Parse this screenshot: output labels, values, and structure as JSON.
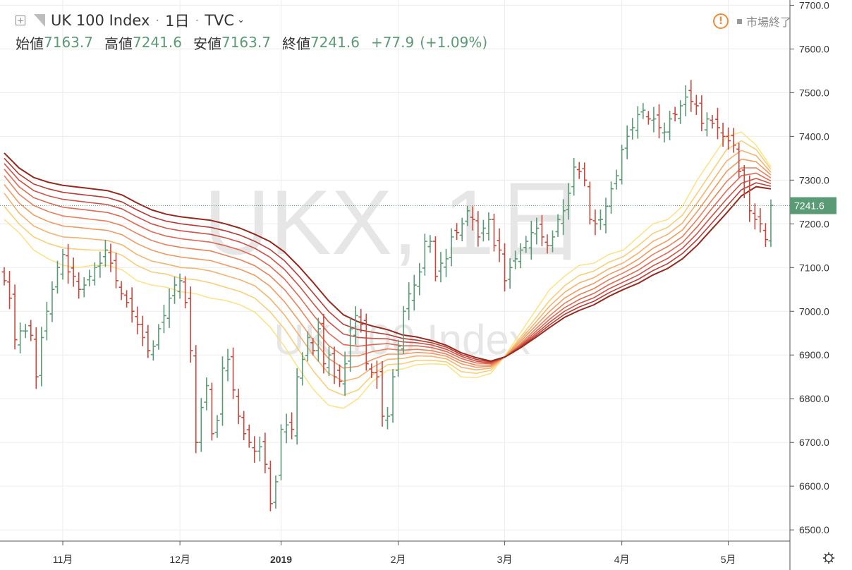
{
  "header": {
    "symbol_name": "UK 100 Index",
    "interval": "1日",
    "exchange": "TVC",
    "status_text": "市場終了",
    "ohlc": [
      {
        "label": "始値",
        "value": "7163.7"
      },
      {
        "label": "高値",
        "value": "7241.6"
      },
      {
        "label": "安値",
        "value": "7163.7"
      },
      {
        "label": "終値",
        "value": "7241.6"
      }
    ],
    "change": "+77.9",
    "change_pct": "(+1.09%)"
  },
  "watermark": {
    "line1": "UKX, 1日",
    "line2": "UK 100 Index"
  },
  "price_tag": "7241.6",
  "colors": {
    "up": "#5a9a75",
    "down": "#c9473c",
    "grid": "#ececec",
    "axis_text": "#333333",
    "ribbon": [
      "#fbe38a",
      "#f7cf7a",
      "#f4b36e",
      "#f09b62",
      "#e8815a",
      "#de6a51",
      "#cf5246",
      "#b73d35",
      "#96291d"
    ]
  },
  "chart_data": {
    "type": "candlestick",
    "title": "UK 100 Index",
    "y_axis": {
      "ticks": [
        "6500.0",
        "6600.0",
        "6700.0",
        "6800.0",
        "6900.0",
        "7000.0",
        "7100.0",
        "7200.0",
        "7300.0",
        "7400.0",
        "7500.0",
        "7600.0",
        "7700.0"
      ],
      "range": [
        6476,
        7712
      ]
    },
    "x_axis": {
      "labels": [
        {
          "text": "11月",
          "index": 11
        },
        {
          "text": "12月",
          "index": 33
        },
        {
          "text": "2019",
          "index": 52
        },
        {
          "text": "2月",
          "index": 74
        },
        {
          "text": "3月",
          "index": 94
        },
        {
          "text": "4月",
          "index": 116
        },
        {
          "text": "5月",
          "index": 136
        }
      ]
    },
    "last_price": 7241.6,
    "closes": [
      7070,
      7030,
      6935,
      6955,
      6955,
      6945,
      6850,
      6940,
      7000,
      7050,
      7100,
      7130,
      7090,
      7080,
      7050,
      7060,
      7080,
      7100,
      7110,
      7140,
      7110,
      7070,
      7040,
      7020,
      7000,
      6970,
      6940,
      6910,
      6920,
      6960,
      6990,
      7030,
      7060,
      7070,
      7020,
      6910,
      6700,
      6780,
      6830,
      6720,
      6750,
      6870,
      6890,
      6820,
      6760,
      6720,
      6700,
      6680,
      6690,
      6650,
      6560,
      6610,
      6730,
      6740,
      6730,
      6850,
      6890,
      6940,
      6910,
      6960,
      6880,
      6900,
      6850,
      6840,
      6880,
      6960,
      6990,
      6970,
      6880,
      6860,
      6850,
      6760,
      6760,
      6850,
      6920,
      7000,
      7040,
      7060,
      7090,
      7160,
      7160,
      7080,
      7110,
      7120,
      7170,
      7180,
      7200,
      7230,
      7210,
      7170,
      7190,
      7210,
      7150,
      7140,
      7070,
      7100,
      7120,
      7140,
      7160,
      7180,
      7190,
      7170,
      7150,
      7170,
      7210,
      7230,
      7270,
      7330,
      7320,
      7300,
      7210,
      7200,
      7210,
      7240,
      7280,
      7310,
      7370,
      7400,
      7420,
      7450,
      7460,
      7440,
      7440,
      7420,
      7410,
      7440,
      7450,
      7470,
      7490,
      7480,
      7470,
      7430,
      7440,
      7430,
      7420,
      7400,
      7390,
      7380,
      7320,
      7270,
      7230,
      7210,
      7200,
      7164,
      7242
    ],
    "series": [
      {
        "name": "EMA1",
        "values": [
          7210,
          7180,
          7140,
          7120,
          7105,
          7100,
          7105,
          7105,
          7095,
          7070,
          7060,
          7055,
          7045,
          7040,
          7030,
          7025,
          7015,
          6998,
          6965,
          6920,
          6868,
          6820,
          6785,
          6778,
          6800,
          6840,
          6865,
          6868,
          6878,
          6880,
          6878,
          6850,
          6848,
          6858,
          6900,
          6950,
          7000,
          7050,
          7080,
          7105,
          7110,
          7130,
          7140,
          7170,
          7200,
          7210,
          7240,
          7300,
          7350,
          7400,
          7410,
          7380,
          7330
        ]
      },
      {
        "name": "EMA2",
        "values": [
          7240,
          7200,
          7170,
          7155,
          7145,
          7142,
          7140,
          7140,
          7128,
          7105,
          7090,
          7085,
          7075,
          7072,
          7065,
          7055,
          7045,
          7030,
          7000,
          6960,
          6910,
          6862,
          6822,
          6808,
          6820,
          6855,
          6878,
          6880,
          6888,
          6888,
          6884,
          6862,
          6858,
          6865,
          6898,
          6940,
          6982,
          7025,
          7058,
          7082,
          7092,
          7112,
          7125,
          7150,
          7178,
          7192,
          7220,
          7270,
          7320,
          7370,
          7390,
          7370,
          7325
        ]
      },
      {
        "name": "EMA3",
        "values": [
          7270,
          7225,
          7195,
          7180,
          7170,
          7168,
          7165,
          7162,
          7152,
          7130,
          7115,
          7108,
          7100,
          7098,
          7092,
          7082,
          7072,
          7058,
          7030,
          6992,
          6945,
          6898,
          6858,
          6840,
          6848,
          6872,
          6890,
          6892,
          6898,
          6897,
          6891,
          6872,
          6866,
          6870,
          6898,
          6935,
          6973,
          7012,
          7043,
          7065,
          7077,
          7097,
          7111,
          7133,
          7160,
          7176,
          7202,
          7248,
          7296,
          7344,
          7368,
          7356,
          7318
        ]
      },
      {
        "name": "EMA4",
        "values": [
          7290,
          7248,
          7220,
          7205,
          7195,
          7192,
          7188,
          7185,
          7175,
          7155,
          7140,
          7130,
          7124,
          7120,
          7116,
          7106,
          7096,
          7082,
          7058,
          7022,
          6978,
          6932,
          6892,
          6870,
          6874,
          6890,
          6902,
          6902,
          6906,
          6904,
          6897,
          6880,
          6872,
          6874,
          6897,
          6930,
          6965,
          7000,
          7030,
          7050,
          7064,
          7084,
          7099,
          7119,
          7144,
          7162,
          7186,
          7228,
          7274,
          7320,
          7348,
          7342,
          7312
        ]
      },
      {
        "name": "EMA5",
        "values": [
          7310,
          7268,
          7242,
          7228,
          7218,
          7214,
          7210,
          7206,
          7196,
          7178,
          7162,
          7152,
          7146,
          7142,
          7138,
          7128,
          7118,
          7104,
          7082,
          7050,
          7008,
          6962,
          6922,
          6898,
          6898,
          6908,
          6914,
          6911,
          6913,
          6910,
          6902,
          6886,
          6877,
          6877,
          6896,
          6925,
          6958,
          6990,
          7018,
          7038,
          7052,
          7072,
          7088,
          7106,
          7130,
          7148,
          7171,
          7210,
          7254,
          7297,
          7328,
          7328,
          7305
        ]
      },
      {
        "name": "EMA6",
        "values": [
          7325,
          7285,
          7260,
          7248,
          7238,
          7234,
          7230,
          7226,
          7216,
          7198,
          7182,
          7172,
          7166,
          7162,
          7158,
          7150,
          7140,
          7126,
          7104,
          7074,
          7034,
          6990,
          6950,
          6924,
          6920,
          6924,
          6926,
          6921,
          6921,
          6917,
          6908,
          6892,
          6882,
          6880,
          6896,
          6922,
          6952,
          6982,
          7008,
          7027,
          7041,
          7061,
          7077,
          7094,
          7116,
          7134,
          7157,
          7193,
          7235,
          7276,
          7310,
          7316,
          7298
        ]
      },
      {
        "name": "EMA7",
        "values": [
          7338,
          7300,
          7276,
          7264,
          7256,
          7252,
          7248,
          7244,
          7234,
          7216,
          7200,
          7190,
          7184,
          7180,
          7176,
          7168,
          7158,
          7144,
          7124,
          7096,
          7058,
          7016,
          6976,
          6948,
          6940,
          6938,
          6937,
          6930,
          6928,
          6923,
          6913,
          6897,
          6886,
          6882,
          6896,
          6920,
          6947,
          6975,
          7000,
          7018,
          7031,
          7051,
          7067,
          7083,
          7104,
          7121,
          7144,
          7178,
          7218,
          7257,
          7293,
          7304,
          7292
        ]
      },
      {
        "name": "EMA8",
        "values": [
          7350,
          7314,
          7291,
          7280,
          7272,
          7268,
          7264,
          7260,
          7250,
          7232,
          7216,
          7206,
          7200,
          7196,
          7192,
          7184,
          7174,
          7160,
          7142,
          7116,
          7080,
          7040,
          7000,
          6970,
          6958,
          6952,
          6947,
          6938,
          6934,
          6928,
          6918,
          6901,
          6890,
          6884,
          6896,
          6918,
          6943,
          6969,
          6993,
          7010,
          7023,
          7042,
          7058,
          7073,
          7093,
          7109,
          7132,
          7164,
          7202,
          7240,
          7278,
          7294,
          7286
        ]
      },
      {
        "name": "EMA9",
        "values": [
          7362,
          7328,
          7306,
          7295,
          7288,
          7284,
          7280,
          7276,
          7266,
          7248,
          7232,
          7222,
          7216,
          7212,
          7208,
          7200,
          7190,
          7176,
          7160,
          7136,
          7102,
          7064,
          7024,
          6992,
          6976,
          6966,
          6958,
          6946,
          6941,
          6933,
          6922,
          6905,
          6894,
          6886,
          6896,
          6916,
          6939,
          6963,
          6986,
          7002,
          7015,
          7034,
          7050,
          7064,
          7083,
          7098,
          7120,
          7151,
          7188,
          7225,
          7264,
          7285,
          7280
        ]
      }
    ]
  }
}
